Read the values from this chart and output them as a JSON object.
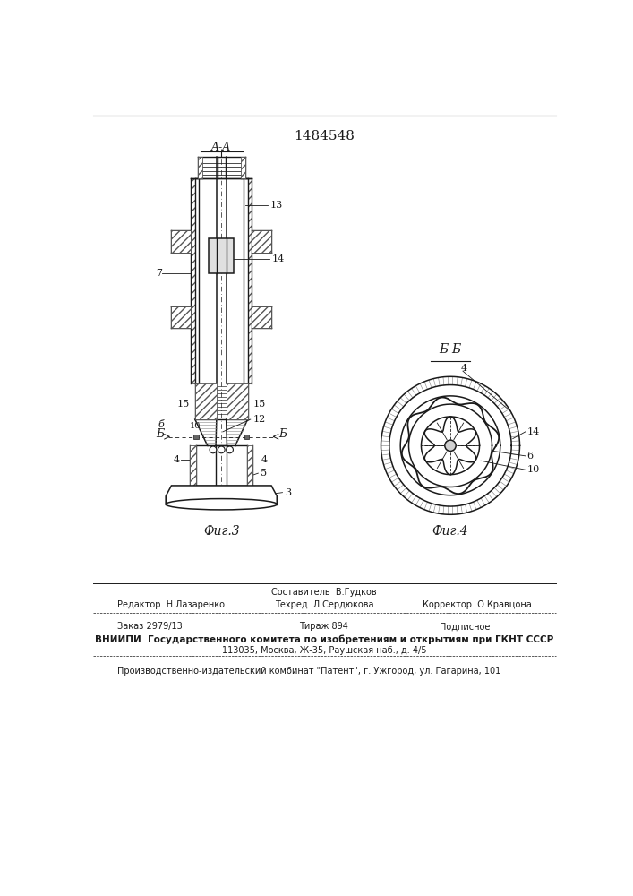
{
  "patent_number": "1484548",
  "fig3_label": "Фиг.3",
  "fig4_label": "Фиг.4",
  "section_aa": "A-A",
  "section_bb": "Б-Б",
  "bg_color": "#ffffff",
  "line_color": "#1a1a1a",
  "footer_sestavitel": "Составитель  В.Гудков",
  "footer_redaktor": "Редактор  Н.Лазаренко",
  "footer_tehred": "Техред  Л.Сердюкова",
  "footer_korrektor": "Корректор  О.Кравцона",
  "footer_zakaz": "Заказ 2979/13",
  "footer_tirazh": "Тираж 894",
  "footer_podpisnoe": "Подписное",
  "footer_vniip1": "ВНИИПИ  Государственного комитета по изобретениям и открытиям при ГКНТ СССР",
  "footer_vniip2": "113035, Москва, Ж-35, Раушская наб., д. 4/5",
  "footer_patent": "Производственно-издательский комбинат \"Патент\", г. Ужгород, ул. Гагарина, 101"
}
